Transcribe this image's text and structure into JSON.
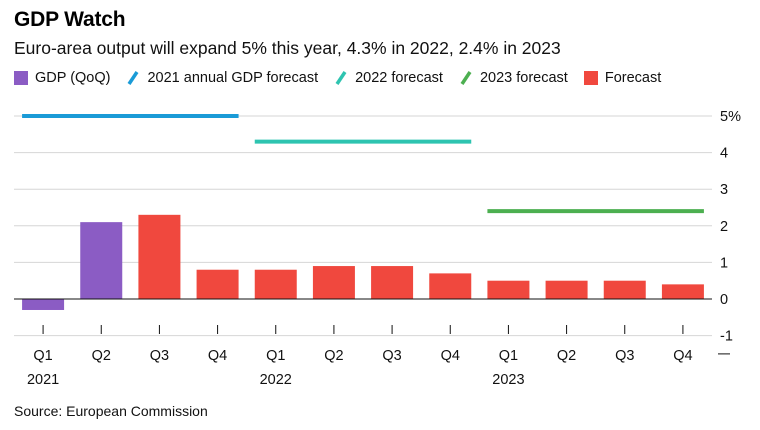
{
  "header": {
    "title": "GDP Watch",
    "subtitle": "Euro-area output will expand 5% this year, 4.3% in 2022, 2.4% in 2023"
  },
  "legend": [
    {
      "label": "GDP (QoQ)",
      "shape": "square",
      "color": "#8b5cc4"
    },
    {
      "label": "2021 annual GDP forecast",
      "shape": "slash",
      "color": "#1a9bd7"
    },
    {
      "label": "2022 forecast",
      "shape": "slash",
      "color": "#2ec4b0"
    },
    {
      "label": "2023 forecast",
      "shape": "slash",
      "color": "#4caf50"
    },
    {
      "label": "Forecast",
      "shape": "square",
      "color": "#f0483e"
    }
  ],
  "source": "Source: European Commission",
  "chart_data": {
    "type": "bar",
    "title": "GDP Watch",
    "categories": [
      "Q1",
      "Q2",
      "Q3",
      "Q4",
      "Q1",
      "Q2",
      "Q3",
      "Q4",
      "Q1",
      "Q2",
      "Q3",
      "Q4"
    ],
    "years": [
      {
        "label": "2021",
        "index": 0
      },
      {
        "label": "2022",
        "index": 4
      },
      {
        "label": "2023",
        "index": 8
      }
    ],
    "series": [
      {
        "name": "GDP (QoQ)",
        "color": "#8b5cc4",
        "values": [
          -0.3,
          2.1,
          null,
          null,
          null,
          null,
          null,
          null,
          null,
          null,
          null,
          null
        ]
      },
      {
        "name": "Forecast",
        "color": "#f0483e",
        "values": [
          null,
          null,
          2.3,
          0.8,
          0.8,
          0.9,
          0.9,
          0.7,
          0.5,
          0.5,
          0.5,
          0.4
        ]
      }
    ],
    "reference_lines": [
      {
        "name": "2021 annual GDP forecast",
        "value": 5.0,
        "from": 0,
        "to": 3,
        "color": "#1a9bd7"
      },
      {
        "name": "2022 forecast",
        "value": 4.3,
        "from": 4,
        "to": 7,
        "color": "#2ec4b0"
      },
      {
        "name": "2023 forecast",
        "value": 2.4,
        "from": 8,
        "to": 11,
        "color": "#4caf50"
      }
    ],
    "yticks": [
      -1,
      0,
      1,
      2,
      3,
      4,
      5
    ],
    "ytick_labels": [
      "-1",
      "0",
      "1",
      "2",
      "3",
      "4",
      "5%"
    ],
    "ylim": [
      -1.5,
      5.5
    ],
    "grid": true,
    "yaxis_side": "right"
  }
}
